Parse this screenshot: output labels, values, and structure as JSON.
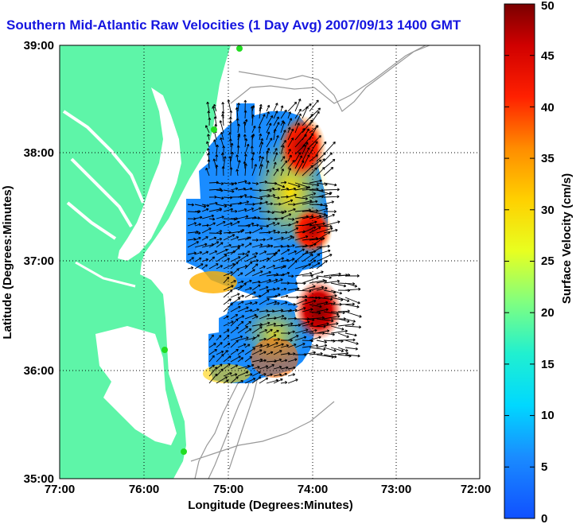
{
  "title": "Southern Mid-Atlantic Raw Velocities (1 Day Avg) 2007/09/13 1400 GMT",
  "xaxis": {
    "label": "Longitude (Degrees:Minutes)",
    "ticks": [
      "77:00",
      "76:00",
      "75:00",
      "74:00",
      "73:00",
      "72:00"
    ]
  },
  "yaxis": {
    "label": "Latitude (Degrees:Minutes)",
    "ticks": [
      "39:00",
      "38:00",
      "37:00",
      "36:00",
      "35:00"
    ]
  },
  "colorbar": {
    "label": "Surface Velocity (cm/s)",
    "ticks": [
      "0",
      "5",
      "10",
      "15",
      "20",
      "25",
      "30",
      "35",
      "40",
      "45",
      "50"
    ],
    "min": 0,
    "max": 50
  },
  "colors": {
    "land": "#5ef5a8",
    "ocean": "#ffffff",
    "title": "#1515e0",
    "bathymetry": "#999999",
    "station": "#22dd22"
  }
}
